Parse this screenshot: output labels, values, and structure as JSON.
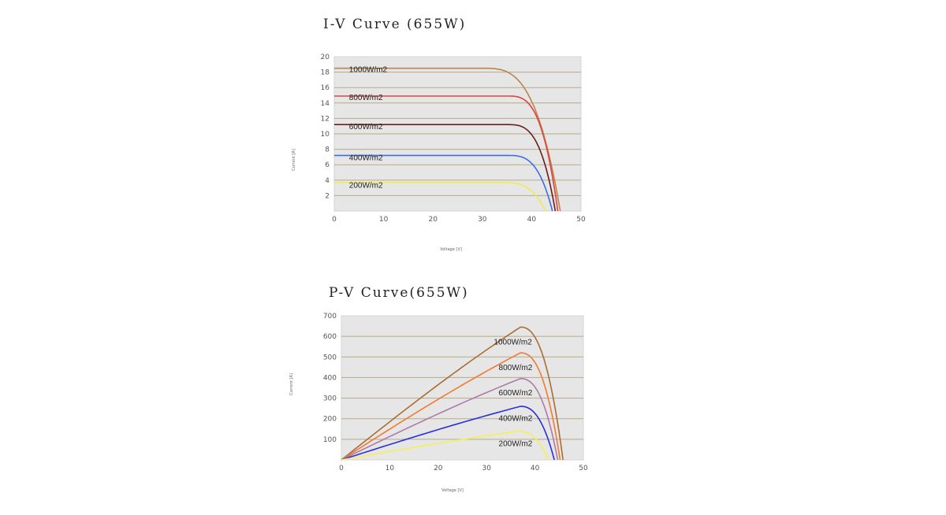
{
  "chart_data": [
    {
      "type": "line",
      "title": "I-V Curve (655W)",
      "xlabel": "Voltage [V]",
      "ylabel": "Current [A]",
      "xlim": [
        0,
        50
      ],
      "ylim": [
        0,
        20
      ],
      "x_ticks": [
        0,
        10,
        20,
        30,
        40,
        50
      ],
      "y_ticks": [
        2,
        4,
        6,
        8,
        10,
        12,
        14,
        16,
        18,
        20
      ],
      "grid": true,
      "series": [
        {
          "name": "1000W/m2",
          "color": "#b8864e",
          "isc": 18.5,
          "voc": 45.8,
          "knee_start": 30,
          "label_pos": [
            3,
            18.0
          ]
        },
        {
          "name": "800W/m2",
          "color": "#e0433c",
          "isc": 14.9,
          "voc": 45.3,
          "knee_start": 35,
          "label_pos": [
            3,
            14.4
          ]
        },
        {
          "name": "600W/m2",
          "color": "#6b1e1e",
          "isc": 11.2,
          "voc": 44.8,
          "knee_start": 35,
          "label_pos": [
            3,
            10.6
          ]
        },
        {
          "name": "400W/m2",
          "color": "#3b6fe0",
          "isc": 7.2,
          "voc": 44.2,
          "knee_start": 35,
          "label_pos": [
            3,
            6.6
          ]
        },
        {
          "name": "200W/m2",
          "color": "#f2ea52",
          "isc": 3.7,
          "voc": 42.8,
          "knee_start": 34,
          "label_pos": [
            3,
            3.0
          ]
        }
      ]
    },
    {
      "type": "line",
      "title": "P-V Curve(655W)",
      "xlabel": "Voltage [V]",
      "ylabel": "Current [A]",
      "xlim": [
        0,
        50
      ],
      "ylim": [
        0,
        700
      ],
      "x_ticks": [
        0,
        10,
        20,
        30,
        40,
        50
      ],
      "y_ticks": [
        100,
        200,
        300,
        400,
        500,
        600,
        700
      ],
      "grid": true,
      "series": [
        {
          "name": "1000W/m2",
          "color": "#a86e32",
          "pmax": 645,
          "vmp": 37.0,
          "voc": 45.8,
          "label_pos": [
            31.5,
            560
          ]
        },
        {
          "name": "800W/m2",
          "color": "#f07a34",
          "pmax": 520,
          "vmp": 37.0,
          "voc": 45.2,
          "label_pos": [
            32.5,
            437
          ]
        },
        {
          "name": "600W/m2",
          "color": "#b07aa8",
          "pmax": 395,
          "vmp": 37.0,
          "voc": 44.7,
          "label_pos": [
            32.5,
            313
          ]
        },
        {
          "name": "400W/m2",
          "color": "#2a2fd8",
          "pmax": 260,
          "vmp": 37.0,
          "voc": 44.0,
          "label_pos": [
            32.5,
            190
          ]
        },
        {
          "name": "200W/m2",
          "color": "#f6ee5a",
          "pmax": 140,
          "vmp": 36.5,
          "voc": 42.8,
          "label_pos": [
            32.5,
            67
          ]
        }
      ]
    }
  ]
}
